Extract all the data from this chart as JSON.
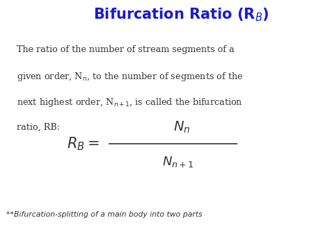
{
  "title": "Bifurcation Ratio (R$_B$)",
  "title_color": "#1a1acc",
  "title_fontsize": 15,
  "body_lines": [
    "The ratio of the number of stream segments of a",
    "given order, N$_n$, to the number of segments of the",
    "next highest order, N$_{n+1}$, is called the bifurcation",
    "ratio, RB:"
  ],
  "footnote": "**Bifurcation-splitting of a main body into two parts",
  "bg_color": "#ffffff",
  "text_color": "#333333",
  "formula_color": "#333333",
  "body_fontsize": 9.2,
  "footnote_fontsize": 7.8,
  "formula_lhs_fontsize": 15,
  "formula_num_fontsize": 14,
  "formula_den_fontsize": 13
}
